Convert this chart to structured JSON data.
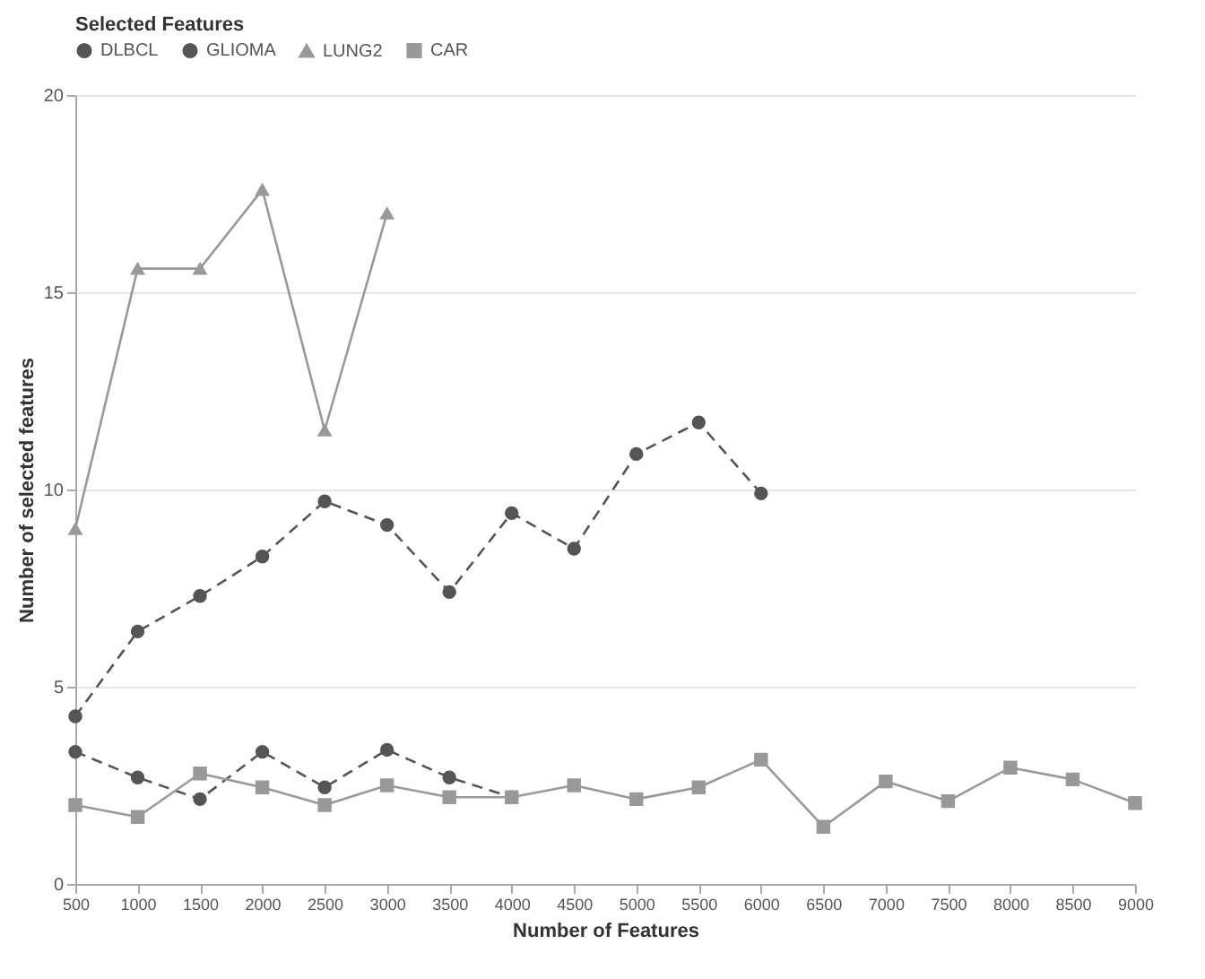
{
  "chart_data": {
    "type": "line",
    "title": "Selected Features",
    "xlabel": "Number of Features",
    "ylabel": "Number of selected features",
    "x": [
      500,
      1000,
      1500,
      2000,
      2500,
      3000,
      3500,
      4000,
      4500,
      5000,
      5500,
      6000,
      6500,
      7000,
      7500,
      8000,
      8500,
      9000
    ],
    "xlim": [
      500,
      9000
    ],
    "xticks": [
      500,
      1000,
      1500,
      2000,
      2500,
      3000,
      3500,
      4000,
      4500,
      5000,
      5500,
      6000,
      6500,
      7000,
      7500,
      8000,
      8500,
      9000
    ],
    "ylim": [
      0,
      20
    ],
    "yticks": [
      0,
      5,
      10,
      15,
      20
    ],
    "grid": "y",
    "legend": "top",
    "series": [
      {
        "name": "DLBCL",
        "color": "#555555",
        "marker": "circle",
        "line_style": "dashed",
        "values": [
          4.25,
          6.4,
          7.3,
          8.3,
          9.7,
          9.1,
          7.4,
          9.4,
          8.5,
          10.9,
          11.7,
          9.9,
          null,
          null,
          null,
          null,
          null,
          null
        ]
      },
      {
        "name": "GLIOMA",
        "color": "#555555",
        "marker": "circle",
        "line_style": "dashed",
        "values": [
          3.35,
          2.7,
          2.15,
          3.35,
          2.45,
          3.4,
          2.7,
          2.2,
          null,
          null,
          null,
          null,
          null,
          null,
          null,
          null,
          null,
          null
        ]
      },
      {
        "name": "LUNG2",
        "color": "#999999",
        "marker": "triangle",
        "line_style": "solid",
        "values": [
          9.0,
          15.6,
          15.6,
          17.6,
          11.5,
          17.0,
          null,
          null,
          null,
          null,
          null,
          null,
          null,
          null,
          null,
          null,
          null,
          null
        ]
      },
      {
        "name": "CAR",
        "color": "#999999",
        "marker": "square",
        "line_style": "solid",
        "values": [
          2.0,
          1.7,
          2.8,
          2.45,
          2.0,
          2.5,
          2.2,
          2.2,
          2.5,
          2.15,
          2.45,
          3.15,
          1.45,
          2.6,
          2.1,
          2.95,
          2.65,
          2.05
        ]
      }
    ]
  }
}
